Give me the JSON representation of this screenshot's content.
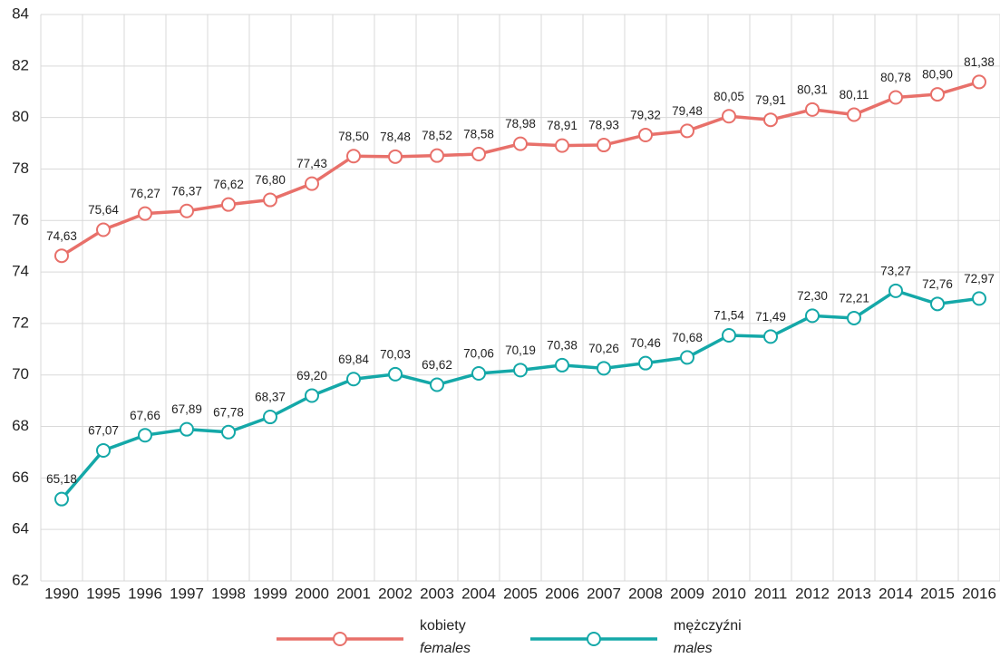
{
  "chart_data": {
    "type": "line",
    "categories": [
      "1990",
      "1995",
      "1996",
      "1997",
      "1998",
      "1999",
      "2000",
      "2001",
      "2002",
      "2003",
      "2004",
      "2005",
      "2006",
      "2007",
      "2008",
      "2009",
      "2010",
      "2011",
      "2012",
      "2013",
      "2014",
      "2015",
      "2016"
    ],
    "series": [
      {
        "name": "kobiety",
        "name_en": "females",
        "color": "#e8706a",
        "values": [
          74.63,
          75.64,
          76.27,
          76.37,
          76.62,
          76.8,
          77.43,
          78.5,
          78.48,
          78.52,
          78.58,
          78.98,
          78.91,
          78.93,
          79.32,
          79.48,
          80.05,
          79.91,
          80.31,
          80.11,
          80.78,
          80.9,
          81.38
        ],
        "value_labels": [
          "74,63",
          "75,64",
          "76,27",
          "76,37",
          "76,62",
          "76,80",
          "77,43",
          "78,50",
          "78,48",
          "78,52",
          "78,58",
          "78,98",
          "78,91",
          "78,93",
          "79,32",
          "79,48",
          "80,05",
          "79,91",
          "80,31",
          "80,11",
          "80,78",
          "80,90",
          "81,38"
        ]
      },
      {
        "name": "mężczyźni",
        "name_en": "males",
        "color": "#14a8a8",
        "values": [
          65.18,
          67.07,
          67.66,
          67.89,
          67.78,
          68.37,
          69.2,
          69.84,
          70.03,
          69.62,
          70.06,
          70.19,
          70.38,
          70.26,
          70.46,
          70.68,
          71.54,
          71.49,
          72.3,
          72.21,
          73.27,
          72.76,
          72.97
        ],
        "value_labels": [
          "65,18",
          "67,07",
          "67,66",
          "67,89",
          "67,78",
          "68,37",
          "69,20",
          "69,84",
          "70,03",
          "69,62",
          "70,06",
          "70,19",
          "70,38",
          "70,26",
          "70,46",
          "70,68",
          "71,54",
          "71,49",
          "72,30",
          "72,21",
          "73,27",
          "72,76",
          "72,97"
        ]
      }
    ],
    "ylim": [
      62,
      84
    ],
    "yticks": [
      62,
      64,
      66,
      68,
      70,
      72,
      74,
      76,
      78,
      80,
      82,
      84
    ],
    "grid": true
  }
}
